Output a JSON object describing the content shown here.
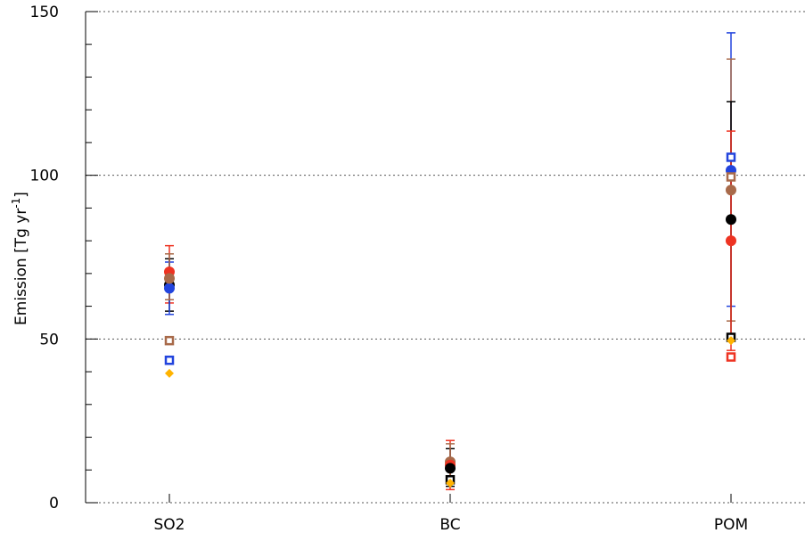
{
  "chart_data": {
    "type": "scatter",
    "title": "",
    "xlabel": "",
    "ylabel": "Emission  [Tg yr⁻¹]",
    "ylabel_parts": {
      "main": "Emission  [Tg yr",
      "sup": "-1",
      "close": "]"
    },
    "categories": [
      "SO2",
      "BC",
      "POM"
    ],
    "ylim": [
      0,
      150
    ],
    "yticks": [
      0,
      50,
      100,
      150
    ],
    "grid": "horizontal-dotted",
    "colors": {
      "red": "#ee3322",
      "blue": "#2244dd",
      "brown": "#a86a4a",
      "black": "#000000",
      "orange": "#ffb300"
    },
    "points": [
      {
        "category": "SO2",
        "y": 70.5,
        "color": "red",
        "marker": "circle"
      },
      {
        "category": "SO2",
        "y": 66.5,
        "color": "black",
        "marker": "circle"
      },
      {
        "category": "SO2",
        "y": 65.5,
        "color": "blue",
        "marker": "circle"
      },
      {
        "category": "SO2",
        "y": 68.5,
        "color": "brown",
        "marker": "circle"
      },
      {
        "category": "SO2",
        "y": 49.5,
        "color": "brown",
        "marker": "square"
      },
      {
        "category": "SO2",
        "y": 43.5,
        "color": "blue",
        "marker": "square"
      },
      {
        "category": "SO2",
        "y": 39.5,
        "color": "orange",
        "marker": "diamond"
      },
      {
        "category": "BC",
        "y": 12.5,
        "color": "brown",
        "marker": "circle"
      },
      {
        "category": "BC",
        "y": 11.5,
        "color": "red",
        "marker": "circle"
      },
      {
        "category": "BC",
        "y": 10.5,
        "color": "black",
        "marker": "circle"
      },
      {
        "category": "BC",
        "y": 7.0,
        "color": "black",
        "marker": "square"
      },
      {
        "category": "BC",
        "y": 6.0,
        "color": "orange",
        "marker": "diamond"
      },
      {
        "category": "POM",
        "y": 101.5,
        "color": "blue",
        "marker": "circle"
      },
      {
        "category": "POM",
        "y": 95.5,
        "color": "brown",
        "marker": "circle"
      },
      {
        "category": "POM",
        "y": 86.5,
        "color": "black",
        "marker": "circle"
      },
      {
        "category": "POM",
        "y": 80.0,
        "color": "red",
        "marker": "circle"
      },
      {
        "category": "POM",
        "y": 105.5,
        "color": "blue",
        "marker": "square"
      },
      {
        "category": "POM",
        "y": 99.5,
        "color": "brown",
        "marker": "square"
      },
      {
        "category": "POM",
        "y": 50.5,
        "color": "black",
        "marker": "square"
      },
      {
        "category": "POM",
        "y": 49.5,
        "color": "orange",
        "marker": "diamond"
      },
      {
        "category": "POM",
        "y": 44.5,
        "color": "red",
        "marker": "square"
      }
    ],
    "error_bars": [
      {
        "category": "SO2",
        "low": 61.0,
        "high": 78.5,
        "color": "red"
      },
      {
        "category": "SO2",
        "low": 58.5,
        "high": 74.5,
        "color": "black"
      },
      {
        "category": "SO2",
        "low": 57.5,
        "high": 73.5,
        "color": "blue"
      },
      {
        "category": "SO2",
        "low": 62.0,
        "high": 76.0,
        "color": "brown"
      },
      {
        "category": "BC",
        "low": 4.0,
        "high": 19.0,
        "color": "red"
      },
      {
        "category": "BC",
        "low": 5.0,
        "high": 16.5,
        "color": "black"
      },
      {
        "category": "BC",
        "low": 6.0,
        "high": 18.0,
        "color": "brown"
      },
      {
        "category": "POM",
        "low": 60.0,
        "high": 143.5,
        "color": "blue"
      },
      {
        "category": "POM",
        "low": 55.5,
        "high": 135.5,
        "color": "brown"
      },
      {
        "category": "POM",
        "low": 51.0,
        "high": 122.5,
        "color": "black"
      },
      {
        "category": "POM",
        "low": 46.5,
        "high": 113.5,
        "color": "red"
      }
    ]
  }
}
